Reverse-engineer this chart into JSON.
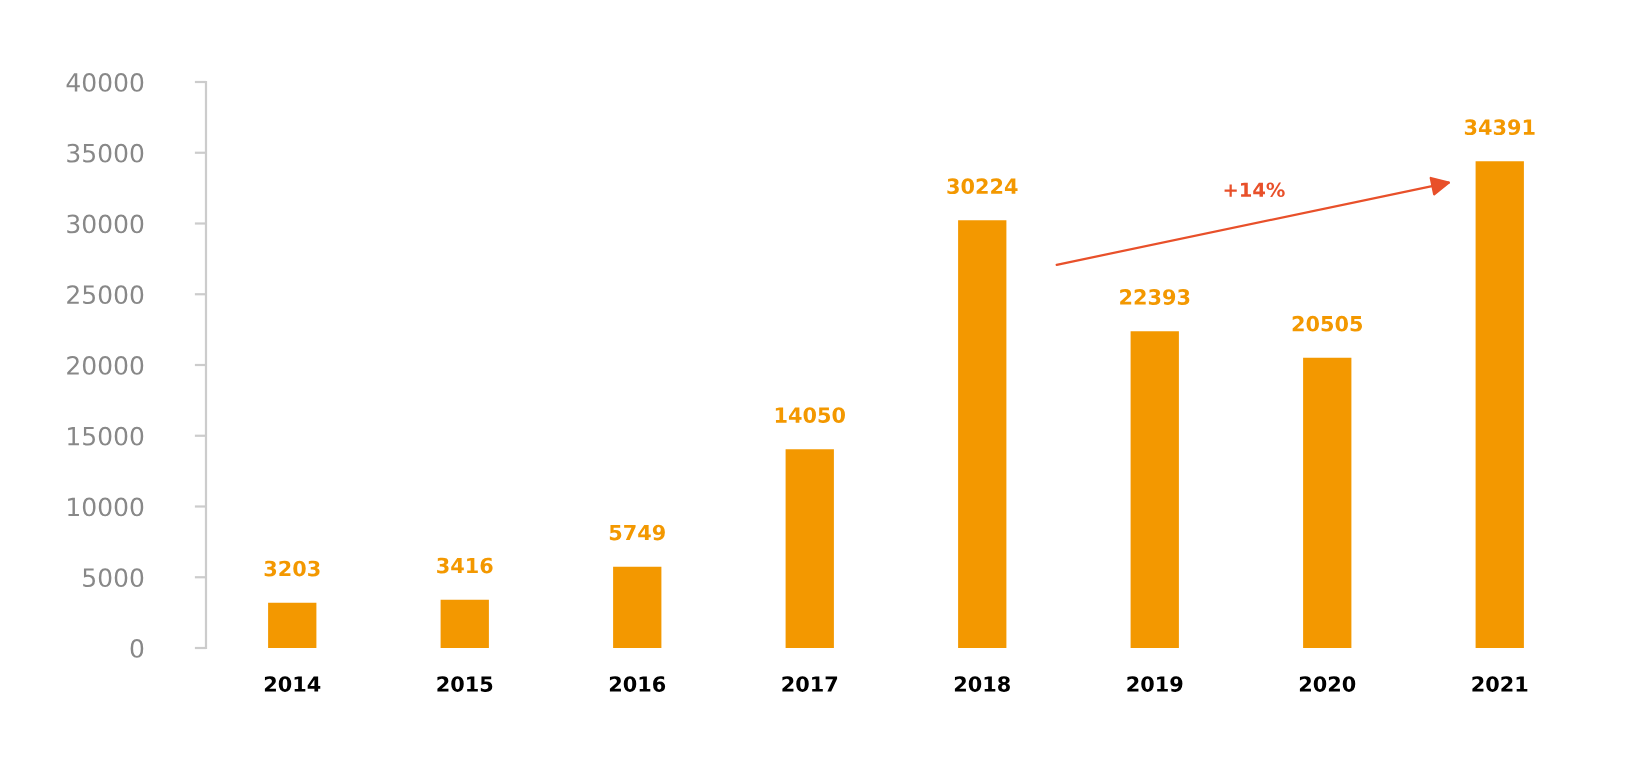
{
  "chart_data": {
    "type": "bar",
    "categories": [
      "2014",
      "2015",
      "2016",
      "2017",
      "2018",
      "2019",
      "2020",
      "2021"
    ],
    "values": [
      3203,
      3416,
      5749,
      14050,
      30224,
      22393,
      20505,
      34391
    ],
    "color": "#f39800",
    "data_labels": true,
    "ylim": [
      0,
      40000
    ],
    "yticks": [
      0,
      5000,
      10000,
      15000,
      20000,
      25000,
      30000,
      35000,
      40000
    ],
    "grid": false,
    "annotations": [
      "+14%"
    ]
  }
}
